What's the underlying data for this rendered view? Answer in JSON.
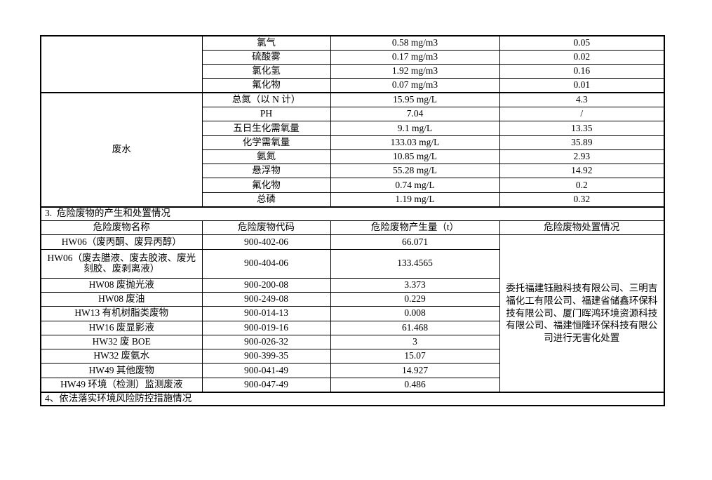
{
  "page": {
    "background_color": "#ffffff",
    "text_color": "#000000",
    "border_color": "#000000"
  },
  "emissions": {
    "gas_category_label": "",
    "water_category_label": "废水",
    "gas_rows": [
      {
        "name": "氯气",
        "value": "0.58 mg/m3",
        "quantity": "0.05"
      },
      {
        "name": "硫酸雾",
        "value": "0.17 mg/m3",
        "quantity": "0.02"
      },
      {
        "name": "氯化氢",
        "value": "1.92 mg/m3",
        "quantity": "0.16"
      },
      {
        "name": "氟化物",
        "value": "0.07 mg/m3",
        "quantity": "0.01"
      }
    ],
    "water_rows": [
      {
        "name": "总氮（以 N 计）",
        "value": "15.95 mg/L",
        "quantity": "4.3"
      },
      {
        "name": "PH",
        "value": "7.04",
        "quantity": "/"
      },
      {
        "name": "五日生化需氧量",
        "value": "9.1 mg/L",
        "quantity": "13.35"
      },
      {
        "name": "化学需氧量",
        "value": "133.03 mg/L",
        "quantity": "35.89"
      },
      {
        "name": "氨氮",
        "value": "10.85 mg/L",
        "quantity": "2.93"
      },
      {
        "name": "悬浮物",
        "value": "55.28 mg/L",
        "quantity": "14.92"
      },
      {
        "name": "氟化物",
        "value": "0.74 mg/L",
        "quantity": "0.2"
      },
      {
        "name": "总磷",
        "value": "1.19 mg/L",
        "quantity": "0.32"
      }
    ]
  },
  "hazardous_waste": {
    "section_title": "3.  危险废物的产生和处置情况",
    "headers": [
      "危险废物名称",
      "危险废物代码",
      "危险废物产生量（t）",
      "危险废物处置情况"
    ],
    "rows": [
      {
        "name": "HW06（废丙酮、废异丙醇）",
        "code": "900-402-06",
        "amount": "66.071"
      },
      {
        "name": "HW06（废去腊液、废去胶液、废光刻胶、废剥离液）",
        "code": "900-404-06",
        "amount": "133.4565"
      },
      {
        "name": "HW08 废抛光液",
        "code": "900-200-08",
        "amount": "3.373"
      },
      {
        "name": "HW08 废油",
        "code": "900-249-08",
        "amount": "0.229"
      },
      {
        "name": "HW13 有机树脂类废物",
        "code": "900-014-13",
        "amount": "0.008"
      },
      {
        "name": "HW16 废显影液",
        "code": "900-019-16",
        "amount": "61.468"
      },
      {
        "name": "HW32 废 BOE",
        "code": "900-026-32",
        "amount": "3"
      },
      {
        "name": "HW32 废氨水",
        "code": "900-399-35",
        "amount": "15.07"
      },
      {
        "name": "HW49 其他废物",
        "code": "900-041-49",
        "amount": "14.927"
      },
      {
        "name": "HW49 环境（检测）监测废液",
        "code": "900-047-49",
        "amount": "0.486"
      }
    ],
    "disposal_text": "委托福建钰融科技有限公司、三明吉福化工有限公司、福建省储鑫环保科技有限公司、厦门晖鸿环境资源科技有限公司、福建恒隆环保科技有限公司进行无害化处置"
  },
  "section4": {
    "title": "4、依法落实环境风险防控措施情况"
  }
}
